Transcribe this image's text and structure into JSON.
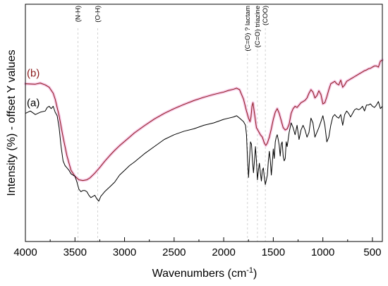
{
  "chart_data": {
    "type": "line",
    "title": "",
    "xlabel": "Wavenumbers (cm",
    "xlabel_sup": "-1",
    "xlabel_end": ")",
    "ylabel": "Intensity (%) - offset Y values",
    "xlim": [
      4000,
      400
    ],
    "x_reversed": true,
    "ylim": [
      0,
      100
    ],
    "y_ticks_labeled": false,
    "grid": false,
    "x_ticks": [
      4000,
      3500,
      3000,
      2500,
      2000,
      1500,
      1000,
      500
    ],
    "x_tick_labels": [
      "4000",
      "3500",
      "3000",
      "2500",
      "2000",
      "1500",
      "1000",
      "500"
    ],
    "peak_markers": [
      {
        "x": 3470,
        "label": "(N-H)"
      },
      {
        "x": 3270,
        "label": "(O-H)"
      },
      {
        "x": 1760,
        "label": "(C=O) ? lactam"
      },
      {
        "x": 1660,
        "label": "(C=O) triazine"
      },
      {
        "x": 1580,
        "label": "(COO)"
      }
    ],
    "series": [
      {
        "name": "(b)",
        "color": "#8b1a1a",
        "halo_color": "#f6c6e6",
        "x": [
          4000,
          3900,
          3850,
          3800,
          3760,
          3720,
          3700,
          3660,
          3620,
          3580,
          3540,
          3500,
          3460,
          3420,
          3380,
          3350,
          3300,
          3250,
          3200,
          3150,
          3100,
          3050,
          3000,
          2950,
          2900,
          2800,
          2700,
          2600,
          2500,
          2400,
          2300,
          2200,
          2100,
          2000,
          1950,
          1900,
          1870,
          1840,
          1800,
          1770,
          1750,
          1735,
          1725,
          1715,
          1705,
          1690,
          1670,
          1650,
          1630,
          1610,
          1590,
          1575,
          1560,
          1540,
          1520,
          1500,
          1480,
          1460,
          1440,
          1420,
          1400,
          1380,
          1360,
          1340,
          1320,
          1300,
          1280,
          1260,
          1240,
          1220,
          1200,
          1180,
          1160,
          1140,
          1120,
          1100,
          1080,
          1060,
          1040,
          1020,
          1000,
          980,
          960,
          940,
          920,
          900,
          880,
          860,
          840,
          820,
          800,
          780,
          760,
          740,
          720,
          700,
          680,
          660,
          640,
          620,
          600,
          580,
          560,
          540,
          520,
          500,
          480,
          460,
          440,
          420,
          400
        ],
        "y": [
          66.5,
          66.3,
          66.8,
          66.0,
          65.0,
          62.5,
          60.0,
          53.0,
          44.0,
          36.0,
          30.0,
          27.5,
          26.0,
          25.7,
          26.0,
          26.8,
          28.8,
          31.2,
          33.8,
          36.2,
          38.4,
          40.4,
          42.2,
          44.0,
          45.8,
          48.8,
          51.6,
          54.0,
          56.0,
          57.8,
          59.4,
          60.8,
          62.0,
          63.0,
          63.7,
          64.2,
          64.6,
          64.0,
          60.0,
          55.0,
          52.0,
          50.5,
          52.5,
          57.0,
          58.5,
          54.0,
          48.0,
          46.5,
          45.0,
          44.0,
          41.5,
          40.5,
          41.5,
          44.0,
          47.5,
          51.5,
          54.5,
          56.0,
          54.0,
          51.0,
          48.0,
          47.0,
          47.5,
          49.5,
          54.0,
          56.0,
          57.0,
          56.5,
          57.5,
          58.5,
          59.0,
          59.5,
          60.5,
          62.5,
          64.0,
          63.0,
          60.5,
          61.5,
          63.5,
          62.0,
          58.0,
          58.5,
          61.0,
          64.0,
          66.5,
          67.0,
          67.5,
          66.5,
          66.0,
          68.0,
          65.0,
          66.0,
          67.5,
          68.0,
          68.5,
          69.0,
          69.5,
          70.0,
          70.5,
          71.0,
          71.5,
          72.0,
          72.3,
          72.8,
          73.0,
          73.5,
          74.0,
          74.0,
          73.5,
          76.0,
          76.5
        ]
      },
      {
        "name": "(a)",
        "color": "#000000",
        "halo_color": "",
        "x": [
          4000,
          3950,
          3900,
          3850,
          3800,
          3780,
          3760,
          3740,
          3720,
          3700,
          3680,
          3660,
          3640,
          3620,
          3600,
          3580,
          3560,
          3540,
          3520,
          3500,
          3480,
          3460,
          3440,
          3420,
          3400,
          3380,
          3360,
          3340,
          3320,
          3300,
          3280,
          3260,
          3240,
          3220,
          3200,
          3150,
          3100,
          3050,
          3000,
          2950,
          2900,
          2800,
          2700,
          2600,
          2500,
          2400,
          2300,
          2200,
          2100,
          2000,
          1950,
          1900,
          1870,
          1840,
          1800,
          1780,
          1770,
          1760,
          1750,
          1740,
          1730,
          1720,
          1710,
          1700,
          1690,
          1680,
          1670,
          1660,
          1650,
          1640,
          1630,
          1620,
          1610,
          1600,
          1590,
          1580,
          1570,
          1560,
          1550,
          1540,
          1530,
          1520,
          1510,
          1500,
          1490,
          1480,
          1470,
          1460,
          1450,
          1440,
          1430,
          1420,
          1410,
          1400,
          1390,
          1380,
          1370,
          1360,
          1350,
          1340,
          1320,
          1300,
          1280,
          1260,
          1240,
          1220,
          1200,
          1180,
          1160,
          1140,
          1120,
          1100,
          1080,
          1060,
          1040,
          1020,
          1000,
          980,
          960,
          940,
          920,
          900,
          880,
          860,
          840,
          820,
          800,
          780,
          760,
          740,
          720,
          700,
          680,
          660,
          640,
          620,
          600,
          580,
          560,
          540,
          520,
          500,
          480,
          460,
          440,
          420,
          400
        ],
        "y": [
          54.0,
          55.0,
          53.5,
          54.5,
          55.0,
          56.5,
          57.0,
          56.0,
          57.0,
          54.5,
          53.0,
          48.0,
          40.0,
          34.0,
          32.0,
          31.0,
          30.0,
          28.5,
          28.0,
          27.5,
          25.0,
          22.0,
          21.0,
          21.5,
          21.5,
          21.0,
          19.5,
          18.5,
          19.0,
          19.5,
          18.0,
          17.0,
          19.0,
          20.0,
          21.0,
          23.0,
          25.0,
          28.0,
          30.0,
          32.0,
          33.5,
          37.0,
          40.0,
          43.0,
          45.0,
          46.5,
          47.5,
          49.0,
          50.0,
          51.5,
          52.0,
          52.5,
          53.0,
          52.0,
          50.5,
          49.0,
          45.0,
          35.0,
          27.0,
          35.0,
          42.0,
          41.0,
          34.0,
          29.0,
          34.0,
          40.0,
          34.0,
          26.0,
          30.0,
          33.0,
          29.0,
          25.5,
          30.0,
          31.0,
          27.0,
          24.0,
          26.0,
          28.0,
          34.0,
          38.0,
          34.0,
          28.0,
          33.0,
          39.0,
          35.0,
          42.0,
          44.0,
          45.0,
          43.0,
          40.5,
          36.0,
          41.0,
          42.0,
          36.0,
          34.0,
          35.0,
          42.0,
          40.0,
          43.0,
          46.0,
          50.0,
          48.0,
          45.0,
          49.0,
          43.0,
          47.0,
          49.0,
          47.0,
          44.0,
          46.0,
          52.0,
          50.0,
          44.0,
          46.0,
          48.0,
          50.5,
          53.0,
          49.0,
          42.0,
          44.0,
          49.0,
          52.5,
          53.5,
          52.5,
          52.0,
          53.5,
          49.0,
          53.5,
          55.0,
          54.0,
          52.5,
          54.0,
          55.5,
          56.0,
          55.5,
          56.0,
          57.0,
          55.0,
          57.5,
          57.5,
          58.0,
          57.0,
          56.5,
          57.5,
          59.0,
          56.0,
          57.0
        ]
      }
    ]
  }
}
